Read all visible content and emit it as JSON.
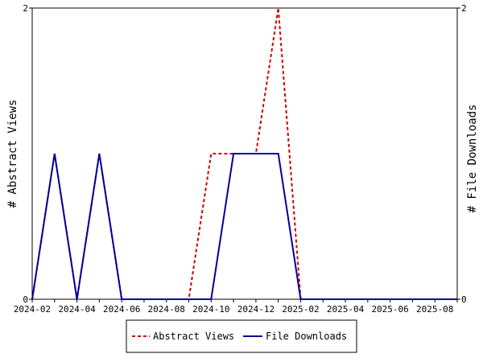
{
  "chart_data": {
    "type": "line",
    "title": "",
    "xlabel": "",
    "ylabel": "# Abstract Views",
    "ylabel_right": "# File Downloads",
    "x": [
      "2024-02",
      "2024-03",
      "2024-04",
      "2024-05",
      "2024-06",
      "2024-07",
      "2024-08",
      "2024-09",
      "2024-10",
      "2024-11",
      "2024-12",
      "2025-01",
      "2025-02",
      "2025-03",
      "2025-04",
      "2025-05",
      "2025-06",
      "2025-07",
      "2025-08",
      "2025-09"
    ],
    "x_tick_labels": [
      "2024-02",
      "2024-04",
      "2024-06",
      "2024-08",
      "2024-10",
      "2024-12",
      "2025-02",
      "2025-04",
      "2025-06",
      "2025-08"
    ],
    "ylim": [
      0,
      2
    ],
    "y_ticks": [
      "0",
      "2"
    ],
    "y_ticks_right": [
      "0",
      "2"
    ],
    "legend_position": "bottom",
    "grid": false,
    "series": [
      {
        "name": "Abstract Views",
        "color": "#cc0000",
        "style": "dashed",
        "axis": "left",
        "values": [
          0,
          1,
          0,
          1,
          0,
          0,
          0,
          0,
          1,
          1,
          1,
          2,
          0,
          0,
          0,
          0,
          0,
          0,
          0,
          0
        ]
      },
      {
        "name": "File Downloads",
        "color": "#000099",
        "style": "solid",
        "axis": "right",
        "values": [
          0,
          1,
          0,
          1,
          0,
          0,
          0,
          0,
          0,
          1,
          1,
          1,
          0,
          0,
          0,
          0,
          0,
          0,
          0,
          0
        ]
      }
    ]
  }
}
